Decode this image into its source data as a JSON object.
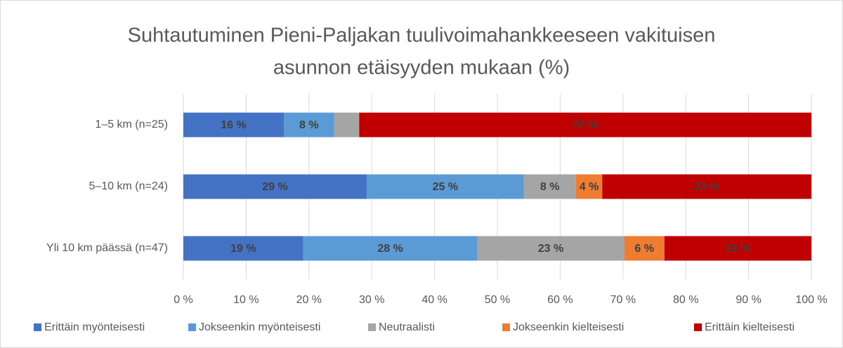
{
  "chart_data": {
    "type": "stacked_bar_horizontal",
    "title": [
      "Suhtautuminen Pieni-Paljakan tuulivoimahankkeeseen vakituisen",
      "asunnon etäisyyden mukaan (%)"
    ],
    "categories": [
      "1–5 km (n=25)",
      "5–10 km (n=24)",
      "Yli 10 km päässä (n=47)"
    ],
    "series": [
      {
        "name": "Erittäin myönteisesti",
        "color": "#4472c4",
        "values": [
          16,
          29.2,
          19.1
        ],
        "value_labels": [
          "16 %",
          "29 %",
          "19 %"
        ]
      },
      {
        "name": "Jokseenkin myönteisesti",
        "color": "#5b9bd5",
        "values": [
          8,
          25,
          27.7
        ],
        "value_labels": [
          "8 %",
          "25 %",
          "28 %"
        ]
      },
      {
        "name": "Neutraalisti",
        "color": "#a5a5a5",
        "values": [
          4,
          8.3,
          23.4
        ],
        "value_labels": [
          null,
          "8 %",
          "23 %"
        ]
      },
      {
        "name": "Jokseenkin kielteisesti",
        "color": "#ed7d31",
        "values": [
          0,
          4.2,
          6.4
        ],
        "value_labels": [
          null,
          "4 %",
          "6 %"
        ]
      },
      {
        "name": "Erittäin kielteisesti",
        "color": "#c00000",
        "values": [
          72,
          33.3,
          23.4
        ],
        "value_labels": [
          "72 %",
          "33 %",
          "23 %"
        ]
      }
    ],
    "xlim": [
      0,
      100
    ],
    "xticks": [
      {
        "value": 0,
        "label": "0 %"
      },
      {
        "value": 10,
        "label": "10 %"
      },
      {
        "value": 20,
        "label": "20 %"
      },
      {
        "value": 30,
        "label": "30 %"
      },
      {
        "value": 40,
        "label": "40 %"
      },
      {
        "value": 50,
        "label": "50 %"
      },
      {
        "value": 60,
        "label": "60 %"
      },
      {
        "value": 70,
        "label": "70 %"
      },
      {
        "value": 80,
        "label": "80 %"
      },
      {
        "value": 90,
        "label": "90 %"
      },
      {
        "value": 100,
        "label": "100 %"
      }
    ],
    "grid": true,
    "legend": "bottom"
  }
}
